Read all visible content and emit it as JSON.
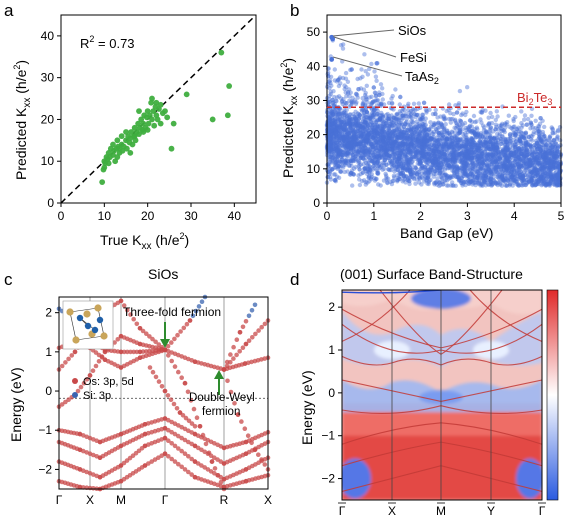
{
  "panels": {
    "a": {
      "letter": "a"
    },
    "b": {
      "letter": "b"
    },
    "c": {
      "letter": "c"
    },
    "d": {
      "letter": "d"
    }
  },
  "colors": {
    "green": "#3fae3f",
    "blue": "#4a72d8",
    "red_dash": "#cc2a2a",
    "os_red": "#c8494a",
    "si_blue": "#3a64b0",
    "arrow_green": "#2e8b2e"
  },
  "chart_data": [
    {
      "id": "a",
      "type": "scatter",
      "title": "",
      "xlabel_main": "True K",
      "xlabel_sub": "xx",
      "xlabel_unit": " (h/e",
      "xlabel_sup": "2",
      "xlabel_end": ")",
      "ylabel_main": "Predicted K",
      "ylabel_sub": "xx",
      "ylabel_unit": " (h/e",
      "ylabel_sup": "2",
      "ylabel_end": ")",
      "xlim": [
        0,
        45
      ],
      "ylim": [
        0,
        45
      ],
      "xticks": [
        "0",
        "10",
        "20",
        "30",
        "40"
      ],
      "yticks": [
        "0",
        "10",
        "20",
        "30",
        "40"
      ],
      "annotation_main": "R",
      "annotation_sup": "2",
      "annotation_rest": " = 0.73",
      "points": [
        [
          9.5,
          5
        ],
        [
          9.8,
          8
        ],
        [
          10,
          10
        ],
        [
          10.2,
          9.5
        ],
        [
          10.5,
          11
        ],
        [
          10.8,
          10.5
        ],
        [
          11,
          12
        ],
        [
          11.3,
          11
        ],
        [
          11.5,
          13
        ],
        [
          12,
          11.5
        ],
        [
          12.2,
          12.5
        ],
        [
          12.5,
          10
        ],
        [
          12.8,
          13
        ],
        [
          13,
          11
        ],
        [
          13.2,
          13.5
        ],
        [
          13.5,
          12
        ],
        [
          14,
          14
        ],
        [
          14.2,
          12.5
        ],
        [
          14.5,
          13.5
        ],
        [
          15,
          15
        ],
        [
          15.2,
          13
        ],
        [
          15.5,
          16
        ],
        [
          15.8,
          14.5
        ],
        [
          16,
          15.5
        ],
        [
          16.2,
          17
        ],
        [
          16.5,
          14
        ],
        [
          16.8,
          16
        ],
        [
          17,
          18
        ],
        [
          17.2,
          15
        ],
        [
          17.5,
          17
        ],
        [
          17.8,
          19
        ],
        [
          18,
          16.5
        ],
        [
          18.2,
          18
        ],
        [
          18.5,
          20
        ],
        [
          18.8,
          17.5
        ],
        [
          19,
          19
        ],
        [
          19.2,
          21
        ],
        [
          19.5,
          18
        ],
        [
          19.8,
          20.5
        ],
        [
          20,
          22
        ],
        [
          20.2,
          19
        ],
        [
          20.5,
          21
        ],
        [
          20.8,
          24
        ],
        [
          21,
          20
        ],
        [
          21.3,
          22
        ],
        [
          21.5,
          18.5
        ],
        [
          21.8,
          23
        ],
        [
          22,
          21
        ],
        [
          22.3,
          20
        ],
        [
          22.6,
          22.5
        ],
        [
          23,
          19
        ],
        [
          23.5,
          21.5
        ],
        [
          24,
          22
        ],
        [
          24.5,
          20.5
        ],
        [
          25.5,
          13
        ],
        [
          26,
          19
        ],
        [
          29,
          26
        ],
        [
          35,
          20
        ],
        [
          37,
          36
        ],
        [
          38.5,
          21
        ],
        [
          38.8,
          28
        ],
        [
          13.5,
          13
        ],
        [
          16,
          12
        ],
        [
          17,
          16
        ],
        [
          19,
          17
        ],
        [
          20,
          17.5
        ],
        [
          14,
          16
        ],
        [
          18,
          22
        ],
        [
          21,
          25
        ],
        [
          10,
          8.5
        ],
        [
          11,
          9.5
        ],
        [
          12,
          14
        ],
        [
          13,
          15
        ],
        [
          15,
          17
        ],
        [
          22,
          24
        ],
        [
          23,
          23.5
        ]
      ]
    },
    {
      "id": "b",
      "type": "scatter",
      "title": "",
      "xlabel": "Band Gap (eV)",
      "ylabel_main": "Predicted K",
      "ylabel_sub": "xx",
      "ylabel_unit": " (h/e",
      "ylabel_sup": "2",
      "ylabel_end": ")",
      "xlim": [
        0,
        5
      ],
      "ylim": [
        0,
        55
      ],
      "xticks": [
        "0",
        "1",
        "2",
        "3",
        "4",
        "5"
      ],
      "yticks": [
        "0",
        "10",
        "20",
        "30",
        "40",
        "50"
      ],
      "reference_line": {
        "label_main": "Bi",
        "label_sub1": "2",
        "label_mid": "Te",
        "label_sub2": "3",
        "value": 28
      },
      "annotations": [
        {
          "label": "SiOs",
          "x": 0.1,
          "y": 48.5
        },
        {
          "label": "FeSi",
          "x": 0.12,
          "y": 48.0
        },
        {
          "label": "TaAs",
          "sub": "2",
          "x": 0.1,
          "y": 42.0
        }
      ],
      "n_points": 5000
    },
    {
      "id": "c",
      "type": "line",
      "title": "SiOs",
      "ylabel": "Energy (eV)",
      "ylim": [
        -2.5,
        2.4
      ],
      "yticks": [
        "−2",
        "−1",
        "0",
        "1",
        "2"
      ],
      "kpath": [
        "Γ",
        "X",
        "M",
        "Γ",
        "R",
        "X"
      ],
      "legend": [
        {
          "label": "Os: 3p, 5d"
        },
        {
          "label": "Si: 3p"
        }
      ],
      "annotations": [
        {
          "label": "Three-fold fermion"
        },
        {
          "label": "Double-Weyl"
        },
        {
          "label": "fermion"
        }
      ]
    },
    {
      "id": "d",
      "type": "heatmap",
      "title": "(001) Surface Band-Structure",
      "ylabel": "Energy (eV)",
      "ylim": [
        -2.5,
        2.4
      ],
      "yticks": [
        "−2",
        "−1",
        "0",
        "1",
        "2"
      ],
      "kpath": [
        "Γ",
        "X",
        "M",
        "Y",
        "Γ"
      ],
      "colorscale": [
        "#2b5be0",
        "#ffffff",
        "#e02a2a"
      ]
    }
  ]
}
